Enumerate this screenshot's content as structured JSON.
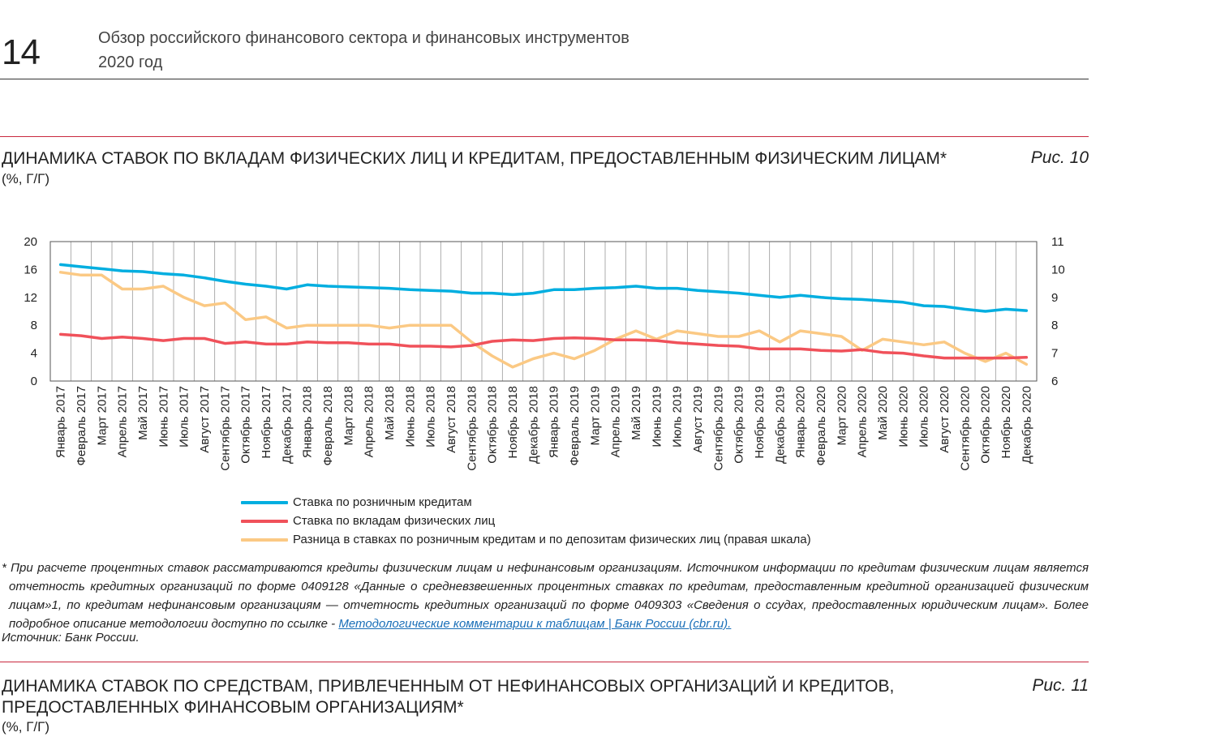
{
  "header": {
    "page_number": "14",
    "title_line1": "Обзор российского финансового сектора и финансовых инструментов",
    "title_line2": "2020 год"
  },
  "figure10": {
    "title": "ДИНАМИКА СТАВОК ПО ВКЛАДАМ ФИЗИЧЕСКИХ ЛИЦ И КРЕДИТАМ, ПРЕДОСТАВЛЕННЫМ ФИЗИЧЕСКИМ ЛИЦАМ*",
    "label": "Рис. 10",
    "unit": "(%, Г/Г)",
    "footnote_text": "* При расчете процентных ставок рассматриваются кредиты физическим лицам и нефинансовым организациям. Источником информации по кредитам физическим лицам является отчетность кредитных организаций по форме 0409128 «Данные о средневзвешенных процентных ставках по кредитам, предоставленным кредитной организацией физическим лицам»1, по кредитам нефинансовым организациям — отчетность кредитных организаций по форме 0409303 «Сведения о ссудах, предоставленных юридическим лицам». Более подробное описание методологии  доступно по ссылке - ",
    "footnote_link": "Методологические комментарии к таблицам | Банк России (cbr.ru).",
    "source": "Источник: Банк России."
  },
  "figure11": {
    "title_line1": "ДИНАМИКА СТАВОК ПО СРЕДСТВАМ, ПРИВЛЕЧЕННЫМ ОТ НЕФИНАНСОВЫХ ОРГАНИЗАЦИЙ И КРЕДИТОВ,",
    "title_line2": "ПРЕДОСТАВЛЕННЫХ ФИНАНСОВЫМ ОРГАНИЗАЦИЯМ*",
    "label": "Рис. 11",
    "unit": "(%, Г/Г)"
  },
  "colors": {
    "accent_rule": "#c9283e",
    "loans": "#00aee0",
    "deposits": "#f0515a",
    "spread": "#fbc984"
  },
  "chart_data": {
    "type": "line",
    "x": [
      "Январь 2017",
      "Февраль 2017",
      "Март 2017",
      "Апрель 2017",
      "Май 2017",
      "Июнь 2017",
      "Июль 2017",
      "Август 2017",
      "Сентябрь 2017",
      "Октябрь 2017",
      "Ноябрь 2017",
      "Декабрь 2017",
      "Январь 2018",
      "Февраль 2018",
      "Март 2018",
      "Апрель 2018",
      "Май 2018",
      "Июнь 2018",
      "Июль 2018",
      "Август 2018",
      "Сентябрь 2018",
      "Октябрь 2018",
      "Ноябрь 2018",
      "Декабрь 2018",
      "Январь 2019",
      "Февраль 2019",
      "Март 2019",
      "Апрель 2019",
      "Май 2019",
      "Июнь 2019",
      "Июль 2019",
      "Август 2019",
      "Сентябрь 2019",
      "Октябрь 2019",
      "Ноябрь 2019",
      "Декабрь 2019",
      "Январь 2020",
      "Февраль 2020",
      "Март 2020",
      "Апрель 2020",
      "Май 2020",
      "Июнь 2020",
      "Июль 2020",
      "Август 2020",
      "Сентябрь 2020",
      "Октябрь 2020",
      "Ноябрь 2020",
      "Декабрь 2020"
    ],
    "yticks_left": [
      0,
      4,
      8,
      12,
      16,
      20
    ],
    "yticks_right": [
      6,
      7,
      8,
      9,
      10,
      11
    ],
    "ylim_left": [
      0,
      20
    ],
    "ylim_right": [
      6,
      11
    ],
    "grid": "vertical",
    "legend_position": "bottom",
    "series": [
      {
        "name": "Ставка по розничным кредитам",
        "axis": "left",
        "color": "#00aee0",
        "values": [
          16.7,
          16.4,
          16.1,
          15.8,
          15.7,
          15.4,
          15.2,
          14.8,
          14.3,
          13.9,
          13.6,
          13.2,
          13.8,
          13.6,
          13.5,
          13.4,
          13.3,
          13.1,
          13.0,
          12.9,
          12.6,
          12.6,
          12.4,
          12.6,
          13.1,
          13.1,
          13.3,
          13.4,
          13.6,
          13.3,
          13.3,
          13.0,
          12.8,
          12.6,
          12.3,
          12.0,
          12.3,
          12.0,
          11.8,
          11.7,
          11.5,
          11.3,
          10.8,
          10.7,
          10.3,
          10.0,
          10.3,
          10.1
        ]
      },
      {
        "name": "Ставка по вкладам физических лиц",
        "axis": "left",
        "color": "#f0515a",
        "values": [
          6.7,
          6.5,
          6.1,
          6.3,
          6.1,
          5.8,
          6.1,
          6.1,
          5.4,
          5.6,
          5.3,
          5.3,
          5.6,
          5.5,
          5.5,
          5.3,
          5.3,
          5.0,
          5.0,
          4.9,
          5.1,
          5.7,
          5.9,
          5.8,
          6.1,
          6.2,
          6.1,
          5.9,
          5.9,
          5.8,
          5.5,
          5.3,
          5.1,
          5.0,
          4.6,
          4.6,
          4.6,
          4.4,
          4.3,
          4.5,
          4.1,
          4.0,
          3.6,
          3.3,
          3.3,
          3.3,
          3.3,
          3.4
        ]
      },
      {
        "name": "Разница в ставках по розничным кредитам и по депозитам физических лиц (правая шкала)",
        "axis": "right",
        "color": "#fbc984",
        "values": [
          9.9,
          9.8,
          9.8,
          9.3,
          9.3,
          9.4,
          9.0,
          8.7,
          8.8,
          8.2,
          8.3,
          7.9,
          8.0,
          8.0,
          8.0,
          8.0,
          7.9,
          8.0,
          8.0,
          8.0,
          7.4,
          6.9,
          6.5,
          6.8,
          7.0,
          6.8,
          7.1,
          7.5,
          7.8,
          7.5,
          7.8,
          7.7,
          7.6,
          7.6,
          7.8,
          7.4,
          7.8,
          7.7,
          7.6,
          7.1,
          7.5,
          7.4,
          7.3,
          7.4,
          7.0,
          6.7,
          7.0,
          6.6
        ]
      }
    ]
  }
}
